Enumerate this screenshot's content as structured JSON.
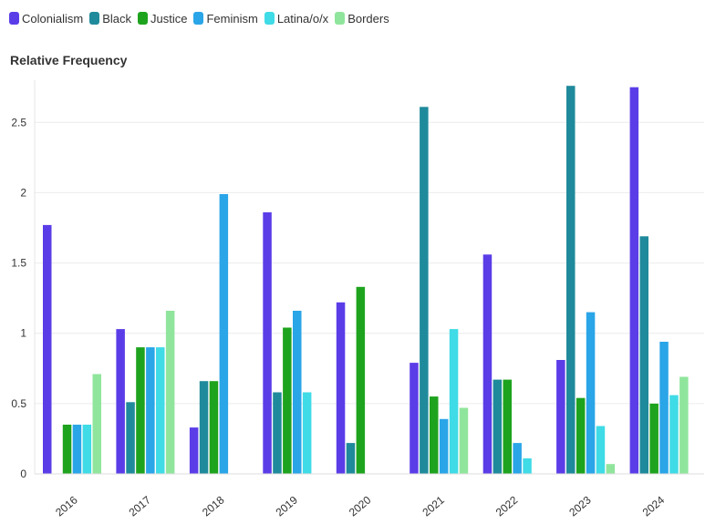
{
  "chart_data": {
    "type": "bar",
    "title": "",
    "xlabel": "",
    "ylabel": "Relative Frequency",
    "categories": [
      "2016",
      "2017",
      "2018",
      "2019",
      "2020",
      "2021",
      "2022",
      "2023",
      "2024"
    ],
    "series": [
      {
        "name": "Colonialism",
        "color": "#5b3de8",
        "values": [
          1.77,
          1.03,
          0.33,
          1.86,
          1.22,
          0.79,
          1.56,
          0.81,
          2.75
        ]
      },
      {
        "name": "Black",
        "color": "#1f8a9b",
        "values": [
          0,
          0.51,
          0.66,
          0.58,
          0.22,
          2.61,
          0.67,
          2.76,
          1.69
        ]
      },
      {
        "name": "Justice",
        "color": "#1ea31e",
        "values": [
          0.35,
          0.9,
          0.66,
          1.04,
          1.33,
          0.55,
          0.67,
          0.54,
          0.5
        ]
      },
      {
        "name": "Feminism",
        "color": "#2aa5e8",
        "values": [
          0.35,
          0.9,
          1.99,
          1.16,
          0,
          0.39,
          0.22,
          1.15,
          0.94
        ]
      },
      {
        "name": "Latina/o/x",
        "color": "#3fdbe6",
        "values": [
          0.35,
          0.9,
          0,
          0.58,
          0,
          1.03,
          0.11,
          0.34,
          0.56
        ]
      },
      {
        "name": "Borders",
        "color": "#90e59c",
        "values": [
          0.71,
          1.16,
          0,
          0,
          0,
          0.47,
          0,
          0.07,
          0.69
        ]
      }
    ],
    "ylim": [
      0,
      2.8
    ],
    "yticks": [
      "0",
      "0.5",
      "1",
      "1.5",
      "2",
      "2.5"
    ],
    "grid": true,
    "legend_position": "top-left"
  }
}
